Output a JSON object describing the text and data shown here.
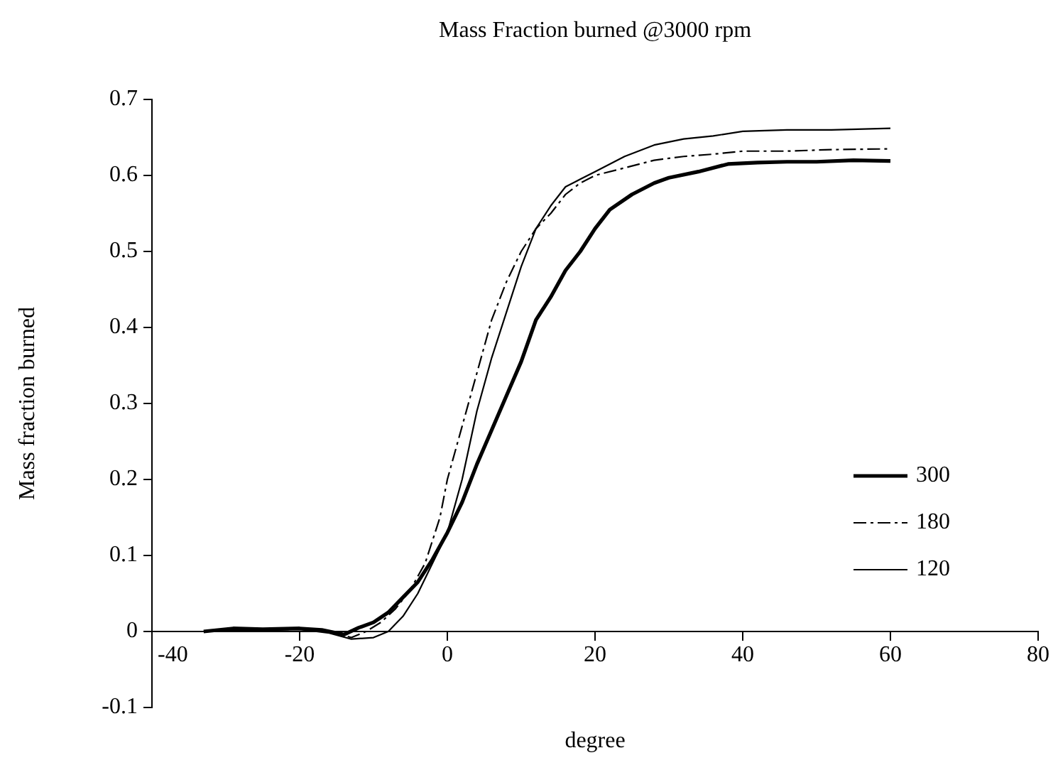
{
  "chart_data": {
    "type": "line",
    "title": "Mass Fraction burned @3000 rpm",
    "xlabel": "degree",
    "ylabel": "Mass fraction burned",
    "xlim": [
      -40,
      80
    ],
    "xticks": [
      -40,
      -20,
      0,
      20,
      40,
      60,
      80
    ],
    "ylim": [
      -0.1,
      0.7
    ],
    "yticks": [
      -0.1,
      0,
      0.1,
      0.2,
      0.3,
      0.4,
      0.5,
      0.6,
      0.7
    ],
    "legend": "right",
    "marker": "none",
    "series": [
      {
        "name": "300",
        "color": "#000000",
        "line_style": "solid",
        "x": [
          -33,
          -29,
          -25,
          -20,
          -17,
          -14,
          -12,
          -10,
          -8,
          -6,
          -4,
          -2,
          0,
          2,
          4,
          6,
          8,
          10,
          12,
          14,
          16,
          18,
          20,
          22,
          25,
          28,
          30,
          34,
          38,
          42,
          46,
          50,
          55,
          60
        ],
        "values": [
          0,
          0.004,
          0.003,
          0.004,
          0.002,
          -0.004,
          0.005,
          0.012,
          0.025,
          0.045,
          0.065,
          0.095,
          0.13,
          0.17,
          0.22,
          0.265,
          0.31,
          0.355,
          0.41,
          0.44,
          0.475,
          0.5,
          0.53,
          0.555,
          0.575,
          0.59,
          0.597,
          0.605,
          0.615,
          0.617,
          0.618,
          0.618,
          0.62,
          0.619
        ]
      },
      {
        "name": "180",
        "color": "#000000",
        "line_style": "dashed",
        "x": [
          -33,
          -25,
          -20,
          -16,
          -13,
          -11,
          -9,
          -7,
          -5,
          -3,
          -1,
          0,
          2,
          4,
          6,
          8,
          10,
          12,
          14,
          16,
          18,
          20,
          24,
          28,
          32,
          36,
          40,
          46,
          52,
          60
        ],
        "values": [
          0,
          0.002,
          0.003,
          0,
          -0.008,
          0,
          0.012,
          0.03,
          0.055,
          0.09,
          0.15,
          0.2,
          0.27,
          0.34,
          0.41,
          0.46,
          0.5,
          0.53,
          0.55,
          0.575,
          0.59,
          0.6,
          0.61,
          0.62,
          0.625,
          0.628,
          0.632,
          0.632,
          0.634,
          0.635
        ]
      },
      {
        "name": "120",
        "color": "#000000",
        "line_style": "solid",
        "x": [
          -33,
          -25,
          -20,
          -16,
          -13,
          -10,
          -8,
          -6,
          -4,
          -2,
          0,
          2,
          4,
          6,
          8,
          10,
          12,
          14,
          16,
          18,
          20,
          24,
          28,
          32,
          36,
          40,
          46,
          52,
          60
        ],
        "values": [
          0,
          0.002,
          0.003,
          -0.002,
          -0.01,
          -0.008,
          0,
          0.02,
          0.05,
          0.09,
          0.13,
          0.2,
          0.29,
          0.36,
          0.42,
          0.48,
          0.53,
          0.56,
          0.585,
          0.595,
          0.605,
          0.625,
          0.64,
          0.648,
          0.652,
          0.658,
          0.66,
          0.66,
          0.662
        ]
      }
    ]
  }
}
